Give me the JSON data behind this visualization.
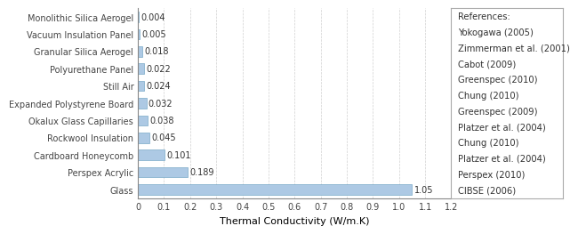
{
  "categories": [
    "Glass",
    "Perspex Acrylic",
    "Cardboard Honeycomb",
    "Rockwool Insulation",
    "Okalux Glass Capillaries",
    "Expanded Polystyrene Board",
    "Still Air",
    "Polyurethane Panel",
    "Granular Silica Aerogel",
    "Vacuum Insulation Panel",
    "Monolithic Silica Aerogel"
  ],
  "values": [
    1.05,
    0.189,
    0.101,
    0.045,
    0.038,
    0.032,
    0.024,
    0.022,
    0.018,
    0.005,
    0.004
  ],
  "value_labels": [
    "1.05",
    "0.189",
    "0.101",
    "0.045",
    "0.038",
    "0.032",
    "0.024",
    "0.022",
    "0.018",
    "0.005",
    "0.004"
  ],
  "references": [
    "CIBSE (2006)",
    "Perspex (2010)",
    "Platzer et al. (2004)",
    "Chung (2010)",
    "Platzer et al. (2004)",
    "Greenspec (2009)",
    "Chung (2010)",
    "Greenspec (2010)",
    "Cabot (2009)",
    "Zimmerman et al. (2001)",
    "Yokogawa (2005)"
  ],
  "references_reversed": [
    "Yokogawa (2005)",
    "Zimmerman et al. (2001)",
    "Cabot (2009)",
    "Greenspec (2010)",
    "Chung (2010)",
    "Greenspec (2009)",
    "Platzer et al. (2004)",
    "Chung (2010)",
    "Platzer et al. (2004)",
    "Perspex (2010)",
    "CIBSE (2006)"
  ],
  "bar_color": "#adc9e4",
  "bar_edge_color": "#7aaac8",
  "xlabel": "Thermal Conductivity (W/m.K)",
  "xlim": [
    0,
    1.2
  ],
  "xticks": [
    0,
    0.1,
    0.2,
    0.3,
    0.4,
    0.5,
    0.6,
    0.7,
    0.8,
    0.9,
    1.0,
    1.1,
    1.2
  ],
  "xtick_labels": [
    "0",
    "0.1",
    "0.2",
    "0.3",
    "0.4",
    "0.5",
    "0.6",
    "0.7",
    "0.8",
    "0.9",
    "1.0",
    "1.1",
    "1.2"
  ],
  "references_label": "References:",
  "grid_color": "#d0d0d0",
  "background_color": "#ffffff",
  "label_fontsize": 7.0,
  "ref_fontsize": 7.2,
  "xlabel_fontsize": 8.0,
  "val_label_fontsize": 7.0
}
